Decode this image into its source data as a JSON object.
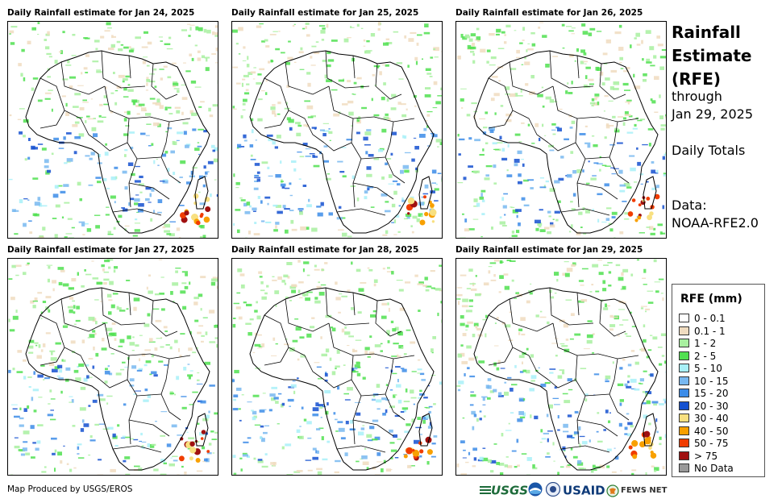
{
  "panels": [
    {
      "title": "Daily Rainfall estimate for Jan 24, 2025",
      "id": "jan24"
    },
    {
      "title": "Daily Rainfall estimate for Jan 25, 2025",
      "id": "jan25"
    },
    {
      "title": "Daily Rainfall estimate for Jan 26, 2025",
      "id": "jan26"
    },
    {
      "title": "Daily Rainfall estimate for Jan 27, 2025",
      "id": "jan27"
    },
    {
      "title": "Daily Rainfall estimate for Jan 28, 2025",
      "id": "jan28"
    },
    {
      "title": "Daily Rainfall estimate for Jan 29, 2025",
      "id": "jan29"
    }
  ],
  "side": {
    "title_line1": "Rainfall",
    "title_line2": "Estimate",
    "title_line3": "(RFE)",
    "through": "through",
    "date": "Jan 29, 2025",
    "totals": "Daily Totals",
    "data_label": "Data:",
    "data_source": "NOAA-RFE2.0"
  },
  "legend": {
    "title": "RFE (mm)",
    "items": [
      {
        "label": "0 - 0.1",
        "color": "#ffffff"
      },
      {
        "label": "0.1 - 1",
        "color": "#f0dcc0"
      },
      {
        "label": "1 - 2",
        "color": "#a8f0a0"
      },
      {
        "label": "2 - 5",
        "color": "#50e050"
      },
      {
        "label": "5 - 10",
        "color": "#a8f0f8"
      },
      {
        "label": "10 - 15",
        "color": "#78b8f0"
      },
      {
        "label": "15 - 20",
        "color": "#3c8ce8"
      },
      {
        "label": "20 - 30",
        "color": "#1450d0"
      },
      {
        "label": "30 - 40",
        "color": "#f8e080"
      },
      {
        "label": "40 - 50",
        "color": "#f8a000"
      },
      {
        "label": "50 - 75",
        "color": "#f03c00"
      },
      {
        "label": "> 75",
        "color": "#a01010"
      },
      {
        "label": "No Data",
        "color": "#999999"
      }
    ]
  },
  "footer": {
    "credit": "Map Produced by USGS/EROS",
    "logo_usgs": "USGS",
    "logo_usaid": "USAID",
    "logo_fewsnet": "FEWS NET"
  }
}
